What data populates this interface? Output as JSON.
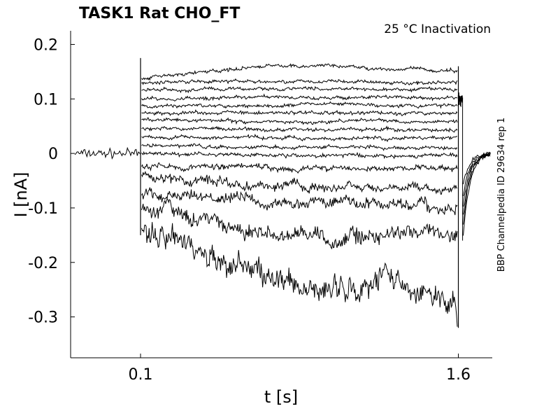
{
  "chart_data": {
    "type": "line",
    "title": "TASK1  Rat  CHO_FT",
    "annotation": "25 °C  Inactivation",
    "side_label": "BBP Channelpedia ID 29634 rep 1",
    "xlabel": "t [s]",
    "ylabel": "I [nA]",
    "xlim": [
      -0.23,
      1.76
    ],
    "ylim": [
      -0.375,
      0.225
    ],
    "x_ticks": [
      {
        "value": 0.1,
        "label": "0.1"
      },
      {
        "value": 1.6,
        "label": "1.6"
      }
    ],
    "y_ticks": [
      {
        "value": 0.2,
        "label": "0.2"
      },
      {
        "value": 0.1,
        "label": "0.1"
      },
      {
        "value": 0,
        "label": "0"
      },
      {
        "value": -0.1,
        "label": "-0.1"
      },
      {
        "value": -0.2,
        "label": "-0.2"
      },
      {
        "value": -0.3,
        "label": "-0.3"
      }
    ],
    "grid": false,
    "color": "#000000",
    "pulse": {
      "start": 0.1,
      "end": 1.6
    },
    "baseline_before": 0.0,
    "after_pulse": {
      "level": 0.1,
      "end": 1.62
    },
    "tail_min": -0.16,
    "series": [
      {
        "values": [
          0.137,
          0.15,
          0.16,
          0.16,
          0.155,
          0.15
        ]
      },
      {
        "values": [
          0.13,
          0.133,
          0.132,
          0.132,
          0.13,
          0.13
        ]
      },
      {
        "values": [
          0.115,
          0.118,
          0.118,
          0.12,
          0.117,
          0.117
        ]
      },
      {
        "values": [
          0.1,
          0.102,
          0.103,
          0.103,
          0.102,
          0.102
        ]
      },
      {
        "values": [
          0.087,
          0.088,
          0.09,
          0.09,
          0.088,
          0.088
        ]
      },
      {
        "values": [
          0.075,
          0.074,
          0.075,
          0.074,
          0.074,
          0.074
        ]
      },
      {
        "values": [
          0.062,
          0.06,
          0.058,
          0.06,
          0.06,
          0.058
        ]
      },
      {
        "values": [
          0.045,
          0.045,
          0.044,
          0.044,
          0.044,
          0.044
        ]
      },
      {
        "values": [
          0.03,
          0.029,
          0.029,
          0.028,
          0.028,
          0.028
        ]
      },
      {
        "values": [
          0.015,
          0.013,
          0.012,
          0.011,
          0.01,
          0.01
        ]
      },
      {
        "values": [
          0.0,
          -0.002,
          -0.003,
          -0.004,
          -0.005,
          -0.005
        ]
      },
      {
        "values": [
          -0.022,
          -0.024,
          -0.026,
          -0.027,
          -0.028,
          -0.028
        ]
      },
      {
        "values": [
          -0.045,
          -0.05,
          -0.057,
          -0.06,
          -0.063,
          -0.064
        ]
      },
      {
        "values": [
          -0.072,
          -0.08,
          -0.088,
          -0.09,
          -0.093,
          -0.094
        ]
      },
      {
        "values": [
          -0.1,
          -0.12,
          -0.138,
          -0.16,
          -0.15,
          -0.148
        ]
      },
      {
        "values": [
          -0.14,
          -0.18,
          -0.23,
          -0.245,
          -0.225,
          -0.28
        ]
      }
    ]
  }
}
